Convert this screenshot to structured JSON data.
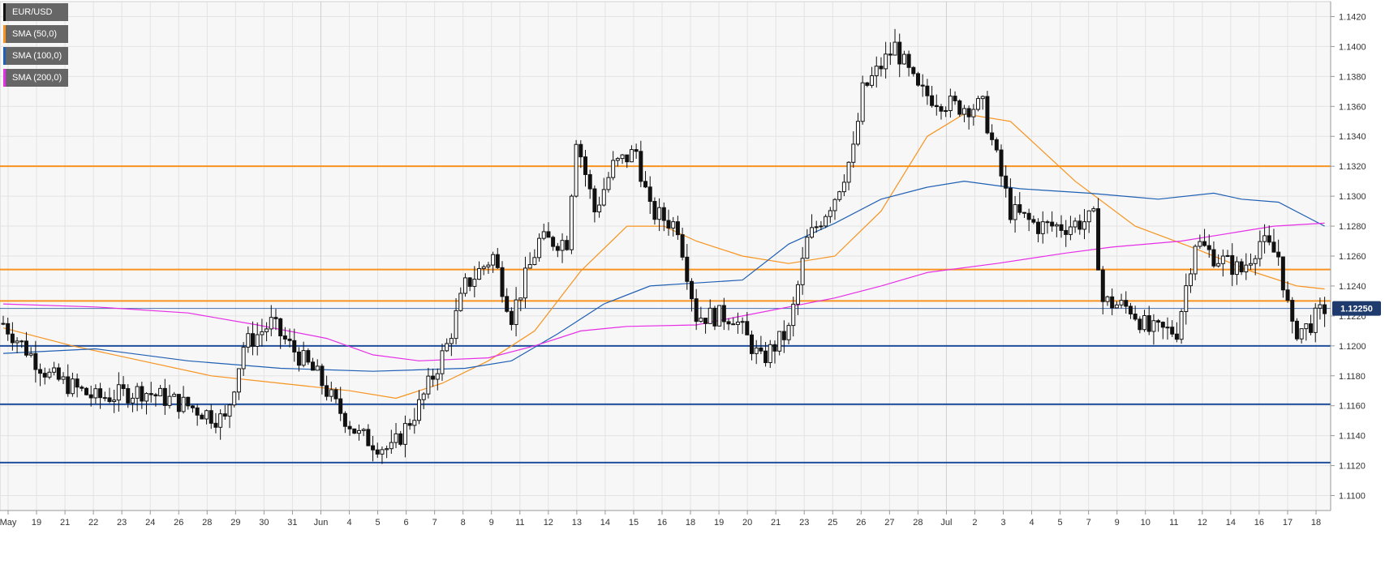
{
  "legend": [
    {
      "label": "EUR/USD",
      "color": "#111111"
    },
    {
      "label": "SMA (50,0)",
      "color": "#f7931e"
    },
    {
      "label": "SMA (100,0)",
      "color": "#1f5fb4"
    },
    {
      "label": "SMA (200,0)",
      "color": "#e62ee6"
    }
  ],
  "price_tag": "1.12250",
  "chart_data": {
    "type": "candlestick",
    "symbol": "EUR/USD",
    "title": "",
    "xlabel": "",
    "ylabel": "",
    "ylim": [
      1.109,
      1.143
    ],
    "y_ticks": [
      1.11,
      1.112,
      1.114,
      1.116,
      1.118,
      1.12,
      1.122,
      1.124,
      1.126,
      1.128,
      1.13,
      1.132,
      1.134,
      1.136,
      1.138,
      1.14,
      1.142
    ],
    "x_ticks": [
      "May",
      "19",
      "21",
      "22",
      "23",
      "24",
      "26",
      "28",
      "29",
      "30",
      "31",
      "Jun",
      "4",
      "5",
      "6",
      "7",
      "8",
      "9",
      "11",
      "12",
      "13",
      "14",
      "15",
      "16",
      "18",
      "19",
      "20",
      "21",
      "23",
      "25",
      "26",
      "27",
      "28",
      "Jul",
      "2",
      "3",
      "4",
      "5",
      "7",
      "9",
      "10",
      "11",
      "12",
      "14",
      "16",
      "17",
      "18"
    ],
    "grid": true,
    "horizontal_levels": [
      {
        "value": 1.132,
        "color": "#f7931e"
      },
      {
        "value": 1.1251,
        "color": "#f7931e"
      },
      {
        "value": 1.123,
        "color": "#f7931e"
      },
      {
        "value": 1.12,
        "color": "#1f4e9c"
      },
      {
        "value": 1.1161,
        "color": "#1f4e9c"
      },
      {
        "value": 1.1122,
        "color": "#1f4e9c"
      }
    ],
    "last_price": 1.1225,
    "close_anchors": [
      [
        0,
        1.1215
      ],
      [
        10,
        1.118
      ],
      [
        20,
        1.1165
      ],
      [
        30,
        1.117
      ],
      [
        40,
        1.116
      ],
      [
        48,
        1.115
      ],
      [
        52,
        1.12
      ],
      [
        58,
        1.1215
      ],
      [
        62,
        1.12
      ],
      [
        68,
        1.118
      ],
      [
        72,
        1.116
      ],
      [
        77,
        1.114
      ],
      [
        84,
        1.113
      ],
      [
        90,
        1.116
      ],
      [
        96,
        1.12
      ],
      [
        100,
        1.124
      ],
      [
        106,
        1.126
      ],
      [
        110,
        1.122
      ],
      [
        116,
        1.127
      ],
      [
        122,
        1.127
      ],
      [
        124,
        1.134
      ],
      [
        128,
        1.129
      ],
      [
        132,
        1.132
      ],
      [
        137,
        1.133
      ],
      [
        140,
        1.129
      ],
      [
        146,
        1.128
      ],
      [
        150,
        1.122
      ],
      [
        158,
        1.122
      ],
      [
        164,
        1.119
      ],
      [
        170,
        1.121
      ],
      [
        174,
        1.127
      ],
      [
        180,
        1.13
      ],
      [
        184,
        1.133
      ],
      [
        186,
        1.137
      ],
      [
        193,
        1.14
      ],
      [
        198,
        1.137
      ],
      [
        206,
        1.136
      ],
      [
        212,
        1.136
      ],
      [
        218,
        1.129
      ],
      [
        224,
        1.128
      ],
      [
        230,
        1.128
      ],
      [
        236,
        1.1285
      ],
      [
        238,
        1.123
      ],
      [
        244,
        1.1225
      ],
      [
        248,
        1.121
      ],
      [
        254,
        1.121
      ],
      [
        258,
        1.127
      ],
      [
        262,
        1.126
      ],
      [
        268,
        1.125
      ],
      [
        272,
        1.127
      ],
      [
        276,
        1.126
      ],
      [
        279,
        1.121
      ],
      [
        282,
        1.1212
      ],
      [
        286,
        1.1225
      ]
    ],
    "sma_series": [
      {
        "name": "SMA (50,0)",
        "color": "#f7931e",
        "values": [
          [
            0,
            1.1212
          ],
          [
            15,
            1.12
          ],
          [
            30,
            1.119
          ],
          [
            45,
            1.118
          ],
          [
            60,
            1.1175
          ],
          [
            75,
            1.117
          ],
          [
            85,
            1.1165
          ],
          [
            95,
            1.1175
          ],
          [
            105,
            1.119
          ],
          [
            115,
            1.121
          ],
          [
            125,
            1.125
          ],
          [
            135,
            1.128
          ],
          [
            143,
            1.128
          ],
          [
            150,
            1.127
          ],
          [
            160,
            1.126
          ],
          [
            170,
            1.1255
          ],
          [
            180,
            1.126
          ],
          [
            190,
            1.129
          ],
          [
            200,
            1.134
          ],
          [
            208,
            1.1355
          ],
          [
            218,
            1.135
          ],
          [
            232,
            1.131
          ],
          [
            245,
            1.128
          ],
          [
            258,
            1.1265
          ],
          [
            270,
            1.125
          ],
          [
            280,
            1.124
          ],
          [
            286,
            1.1238
          ]
        ]
      },
      {
        "name": "SMA (100,0)",
        "color": "#1f5fb4",
        "values": [
          [
            0,
            1.1195
          ],
          [
            20,
            1.1198
          ],
          [
            40,
            1.119
          ],
          [
            60,
            1.1185
          ],
          [
            80,
            1.1183
          ],
          [
            100,
            1.1185
          ],
          [
            110,
            1.119
          ],
          [
            120,
            1.1208
          ],
          [
            130,
            1.1228
          ],
          [
            140,
            1.124
          ],
          [
            150,
            1.1242
          ],
          [
            160,
            1.1244
          ],
          [
            170,
            1.1268
          ],
          [
            180,
            1.1282
          ],
          [
            190,
            1.1298
          ],
          [
            200,
            1.1306
          ],
          [
            208,
            1.131
          ],
          [
            220,
            1.1305
          ],
          [
            235,
            1.1302
          ],
          [
            250,
            1.1298
          ],
          [
            262,
            1.1302
          ],
          [
            268,
            1.1298
          ],
          [
            276,
            1.1296
          ],
          [
            286,
            1.128
          ]
        ]
      },
      {
        "name": "SMA (200,0)",
        "color": "#e62ee6",
        "values": [
          [
            0,
            1.1228
          ],
          [
            20,
            1.1226
          ],
          [
            40,
            1.1222
          ],
          [
            55,
            1.1214
          ],
          [
            70,
            1.1205
          ],
          [
            80,
            1.1194
          ],
          [
            90,
            1.119
          ],
          [
            105,
            1.1192
          ],
          [
            115,
            1.12
          ],
          [
            125,
            1.121
          ],
          [
            135,
            1.1213
          ],
          [
            150,
            1.1214
          ],
          [
            160,
            1.122
          ],
          [
            170,
            1.1226
          ],
          [
            180,
            1.1232
          ],
          [
            190,
            1.124
          ],
          [
            200,
            1.1249
          ],
          [
            215,
            1.1255
          ],
          [
            230,
            1.1262
          ],
          [
            240,
            1.1266
          ],
          [
            255,
            1.127
          ],
          [
            265,
            1.1275
          ],
          [
            275,
            1.128
          ],
          [
            286,
            1.1282
          ]
        ]
      }
    ]
  }
}
